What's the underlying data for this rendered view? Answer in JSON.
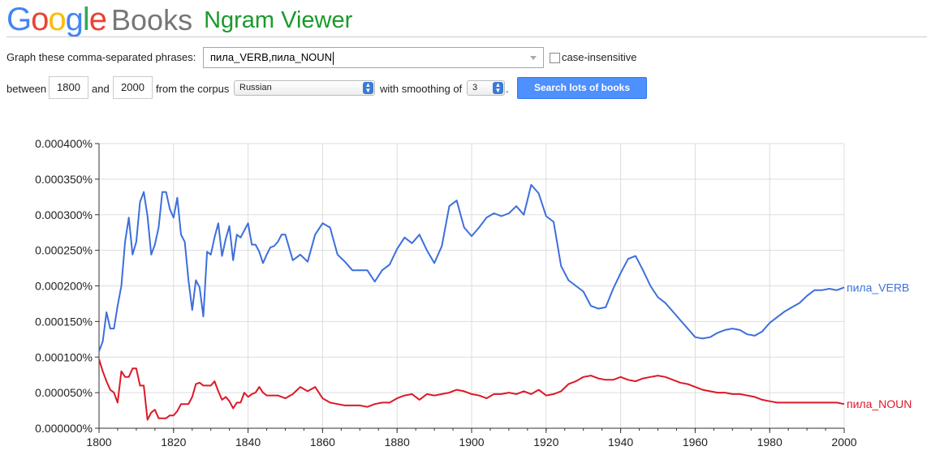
{
  "brand": {
    "google_letters": [
      {
        "ch": "G",
        "color": "#4285f4"
      },
      {
        "ch": "o",
        "color": "#ea4335"
      },
      {
        "ch": "o",
        "color": "#fbbc05"
      },
      {
        "ch": "g",
        "color": "#4285f4"
      },
      {
        "ch": "l",
        "color": "#34a853"
      },
      {
        "ch": "e",
        "color": "#ea4335"
      }
    ],
    "books": "Books",
    "ngram": "Ngram Viewer"
  },
  "form": {
    "query_label": "Graph these comma-separated phrases:",
    "query_value": "пила_VERB,пила_NOUN",
    "case_label": "case-insensitive",
    "between_label": "between",
    "start_year": "1800",
    "and_label": "and",
    "end_year": "2000",
    "corpus_label": "from the corpus",
    "corpus_value": "Russian",
    "smoothing_label": "with smoothing of",
    "smoothing_value": "3",
    "dot": ".",
    "search_button": "Search lots of books"
  },
  "chart_data": {
    "type": "line",
    "xlim": [
      1800,
      2000
    ],
    "ylim": [
      0,
      0.0004
    ],
    "xticks": [
      "1800",
      "1820",
      "1840",
      "1860",
      "1880",
      "1900",
      "1920",
      "1940",
      "1960",
      "1980",
      "2000"
    ],
    "yticks": [
      "0.000000%",
      "0.000050%",
      "0.000100%",
      "0.000150%",
      "0.000200%",
      "0.000250%",
      "0.000300%",
      "0.000350%",
      "0.000400%"
    ],
    "grid": true,
    "series": [
      {
        "name": "пила_VERB",
        "color": "#3c6fdc",
        "x": [
          1800,
          1801,
          1802,
          1803,
          1804,
          1805,
          1806,
          1807,
          1808,
          1809,
          1810,
          1811,
          1812,
          1813,
          1814,
          1815,
          1816,
          1817,
          1818,
          1819,
          1820,
          1821,
          1822,
          1823,
          1824,
          1825,
          1826,
          1827,
          1828,
          1829,
          1830,
          1831,
          1832,
          1833,
          1834,
          1835,
          1836,
          1837,
          1838,
          1839,
          1840,
          1841,
          1842,
          1843,
          1844,
          1845,
          1846,
          1847,
          1848,
          1849,
          1850,
          1852,
          1854,
          1856,
          1858,
          1860,
          1862,
          1864,
          1866,
          1868,
          1870,
          1872,
          1874,
          1876,
          1878,
          1880,
          1882,
          1884,
          1886,
          1888,
          1890,
          1892,
          1894,
          1896,
          1898,
          1900,
          1902,
          1904,
          1906,
          1908,
          1910,
          1912,
          1914,
          1916,
          1918,
          1920,
          1922,
          1924,
          1926,
          1928,
          1930,
          1932,
          1934,
          1936,
          1938,
          1940,
          1942,
          1944,
          1946,
          1948,
          1950,
          1952,
          1954,
          1956,
          1958,
          1960,
          1962,
          1964,
          1966,
          1968,
          1970,
          1972,
          1974,
          1976,
          1978,
          1980,
          1982,
          1984,
          1986,
          1988,
          1990,
          1992,
          1994,
          1996,
          1998,
          2000
        ],
        "y": [
          0.000108,
          0.000122,
          0.000163,
          0.00014,
          0.00014,
          0.000172,
          0.0002,
          0.000262,
          0.000296,
          0.000244,
          0.000262,
          0.000318,
          0.000332,
          0.000298,
          0.000244,
          0.000258,
          0.000282,
          0.000332,
          0.000332,
          0.000308,
          0.000296,
          0.000324,
          0.000272,
          0.000262,
          0.000208,
          0.000166,
          0.000208,
          0.000198,
          0.000157,
          0.000248,
          0.000244,
          0.000268,
          0.000288,
          0.000242,
          0.000266,
          0.000284,
          0.000236,
          0.000272,
          0.000268,
          0.000278,
          0.000288,
          0.000258,
          0.000258,
          0.000248,
          0.000232,
          0.000244,
          0.000254,
          0.000256,
          0.000262,
          0.000272,
          0.000272,
          0.000236,
          0.000244,
          0.000234,
          0.000272,
          0.000288,
          0.000282,
          0.000244,
          0.000234,
          0.000222,
          0.000222,
          0.000222,
          0.000206,
          0.000222,
          0.00023,
          0.000252,
          0.000268,
          0.00026,
          0.000272,
          0.00025,
          0.000232,
          0.000256,
          0.000312,
          0.00032,
          0.000282,
          0.00027,
          0.000282,
          0.000296,
          0.000302,
          0.000298,
          0.000302,
          0.000312,
          0.0003,
          0.000342,
          0.00033,
          0.000298,
          0.00029,
          0.000228,
          0.000208,
          0.0002,
          0.000192,
          0.000172,
          0.000168,
          0.00017,
          0.000196,
          0.000218,
          0.000238,
          0.000242,
          0.000222,
          0.0002,
          0.000184,
          0.000176,
          0.000164,
          0.000152,
          0.00014,
          0.000128,
          0.000126,
          0.000128,
          0.000134,
          0.000138,
          0.00014,
          0.000138,
          0.000132,
          0.00013,
          0.000136,
          0.000148,
          0.000156,
          0.000164,
          0.00017,
          0.000176,
          0.000186,
          0.000194,
          0.000194,
          0.000196,
          0.000194,
          0.000198
        ]
      },
      {
        "name": "пила_NOUN",
        "color": "#dc1928",
        "x": [
          1800,
          1801,
          1802,
          1803,
          1804,
          1805,
          1806,
          1807,
          1808,
          1809,
          1810,
          1811,
          1812,
          1813,
          1814,
          1815,
          1816,
          1817,
          1818,
          1819,
          1820,
          1821,
          1822,
          1823,
          1824,
          1825,
          1826,
          1827,
          1828,
          1829,
          1830,
          1831,
          1832,
          1833,
          1834,
          1835,
          1836,
          1837,
          1838,
          1839,
          1840,
          1841,
          1842,
          1843,
          1844,
          1845,
          1846,
          1848,
          1850,
          1852,
          1854,
          1856,
          1858,
          1860,
          1862,
          1864,
          1866,
          1868,
          1870,
          1872,
          1874,
          1876,
          1878,
          1880,
          1882,
          1884,
          1886,
          1888,
          1890,
          1892,
          1894,
          1896,
          1898,
          1900,
          1902,
          1904,
          1906,
          1908,
          1910,
          1912,
          1914,
          1916,
          1918,
          1920,
          1922,
          1924,
          1926,
          1928,
          1930,
          1932,
          1934,
          1936,
          1938,
          1940,
          1942,
          1944,
          1946,
          1948,
          1950,
          1952,
          1954,
          1956,
          1958,
          1960,
          1962,
          1964,
          1966,
          1968,
          1970,
          1972,
          1974,
          1976,
          1978,
          1980,
          1982,
          1984,
          1986,
          1988,
          1990,
          1992,
          1994,
          1996,
          1998,
          2000
        ],
        "y": [
          9.7e-05,
          8e-05,
          6.6e-05,
          5.4e-05,
          5e-05,
          3.6e-05,
          8e-05,
          7.2e-05,
          7.2e-05,
          8.4e-05,
          8.4e-05,
          6e-05,
          6e-05,
          1.2e-05,
          2.2e-05,
          2.6e-05,
          1.4e-05,
          1.4e-05,
          1.4e-05,
          1.8e-05,
          1.8e-05,
          2.4e-05,
          3.4e-05,
          3.4e-05,
          3.4e-05,
          4.4e-05,
          6.2e-05,
          6.4e-05,
          6e-05,
          6e-05,
          6e-05,
          6.6e-05,
          5.2e-05,
          4e-05,
          4.4e-05,
          3.8e-05,
          2.8e-05,
          3.6e-05,
          3.6e-05,
          5e-05,
          4.4e-05,
          4.8e-05,
          5e-05,
          5.8e-05,
          5e-05,
          4.6e-05,
          4.6e-05,
          4.6e-05,
          4.2e-05,
          4.8e-05,
          5.8e-05,
          5.2e-05,
          5.8e-05,
          4.2e-05,
          3.6e-05,
          3.4e-05,
          3.2e-05,
          3.2e-05,
          3.2e-05,
          3e-05,
          3.4e-05,
          3.6e-05,
          3.6e-05,
          4.2e-05,
          4.6e-05,
          4.8e-05,
          4e-05,
          4.8e-05,
          4.6e-05,
          4.8e-05,
          5e-05,
          5.4e-05,
          5.2e-05,
          4.8e-05,
          4.6e-05,
          4.2e-05,
          4.8e-05,
          4.8e-05,
          5e-05,
          4.8e-05,
          5.2e-05,
          4.8e-05,
          5.4e-05,
          4.6e-05,
          4.8e-05,
          5.2e-05,
          6.2e-05,
          6.6e-05,
          7.2e-05,
          7.4e-05,
          7e-05,
          6.8e-05,
          6.8e-05,
          7.2e-05,
          6.8e-05,
          6.6e-05,
          7e-05,
          7.2e-05,
          7.4e-05,
          7.2e-05,
          6.8e-05,
          6.4e-05,
          6.2e-05,
          5.8e-05,
          5.4e-05,
          5.2e-05,
          5e-05,
          5e-05,
          4.8e-05,
          4.8e-05,
          4.6e-05,
          4.4e-05,
          4e-05,
          3.8e-05,
          3.6e-05,
          3.6e-05,
          3.6e-05,
          3.6e-05,
          3.6e-05,
          3.6e-05,
          3.6e-05,
          3.6e-05,
          3.6e-05,
          3.4e-05
        ]
      }
    ]
  }
}
